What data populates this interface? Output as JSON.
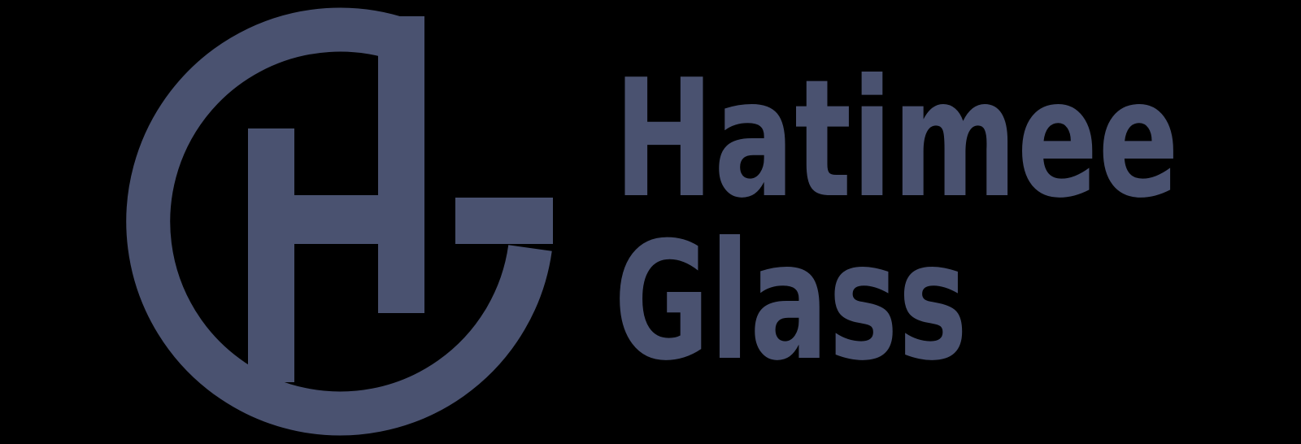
{
  "logo": {
    "line1": "Hatimee",
    "line2": "Glass"
  }
}
